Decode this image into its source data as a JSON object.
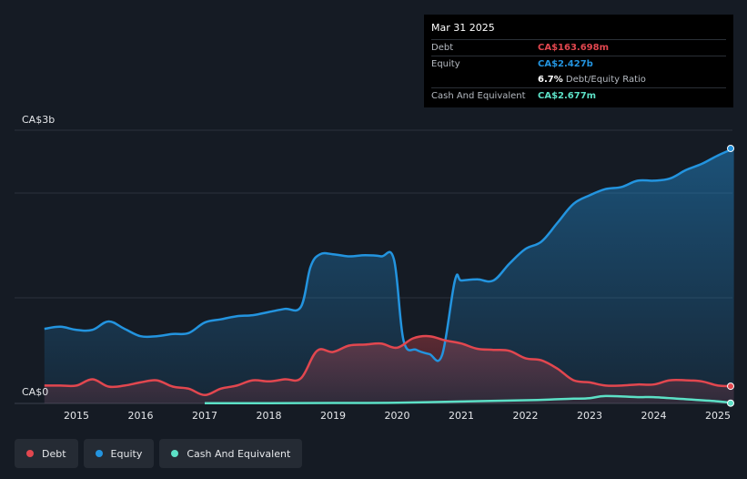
{
  "tooltip": {
    "date": "Mar 31 2025",
    "debt_label": "Debt",
    "debt_value": "CA$163.698m",
    "equity_label": "Equity",
    "equity_value": "CA$2.427b",
    "ratio_value": "6.7%",
    "ratio_label": "Debt/Equity Ratio",
    "cash_label": "Cash And Equivalent",
    "cash_value": "CA$2.677m"
  },
  "legend": {
    "debt": "Debt",
    "equity": "Equity",
    "cash": "Cash And Equivalent"
  },
  "colors": {
    "debt": "#e2474f",
    "equity": "#2394df",
    "cash": "#5ce0c6"
  },
  "chart_data": {
    "type": "area",
    "ylim": [
      0,
      2.6
    ],
    "y_unit": "CA$ billions",
    "y_ticks": [
      "CA$3b",
      "CA$0"
    ],
    "x_ticks": [
      "2015",
      "2016",
      "2017",
      "2018",
      "2019",
      "2020",
      "2021",
      "2022",
      "2023",
      "2024",
      "2025"
    ],
    "series": [
      {
        "name": "Equity",
        "points": [
          [
            2014.5,
            0.71
          ],
          [
            2014.75,
            0.73
          ],
          [
            2015.0,
            0.7
          ],
          [
            2015.25,
            0.7
          ],
          [
            2015.5,
            0.78
          ],
          [
            2015.75,
            0.71
          ],
          [
            2016.0,
            0.64
          ],
          [
            2016.25,
            0.64
          ],
          [
            2016.5,
            0.66
          ],
          [
            2016.75,
            0.67
          ],
          [
            2017.0,
            0.77
          ],
          [
            2017.25,
            0.8
          ],
          [
            2017.5,
            0.83
          ],
          [
            2017.75,
            0.84
          ],
          [
            2018.0,
            0.87
          ],
          [
            2018.25,
            0.9
          ],
          [
            2018.5,
            0.92
          ],
          [
            2018.65,
            1.3
          ],
          [
            2018.8,
            1.42
          ],
          [
            2019.0,
            1.42
          ],
          [
            2019.25,
            1.4
          ],
          [
            2019.5,
            1.41
          ],
          [
            2019.75,
            1.4
          ],
          [
            2019.95,
            1.37
          ],
          [
            2020.1,
            0.6
          ],
          [
            2020.3,
            0.51
          ],
          [
            2020.5,
            0.47
          ],
          [
            2020.7,
            0.46
          ],
          [
            2020.9,
            1.17
          ],
          [
            2021.0,
            1.17
          ],
          [
            2021.25,
            1.18
          ],
          [
            2021.5,
            1.17
          ],
          [
            2021.75,
            1.33
          ],
          [
            2022.0,
            1.47
          ],
          [
            2022.25,
            1.54
          ],
          [
            2022.5,
            1.72
          ],
          [
            2022.75,
            1.9
          ],
          [
            2023.0,
            1.98
          ],
          [
            2023.25,
            2.04
          ],
          [
            2023.5,
            2.06
          ],
          [
            2023.75,
            2.12
          ],
          [
            2024.0,
            2.12
          ],
          [
            2024.25,
            2.14
          ],
          [
            2024.5,
            2.22
          ],
          [
            2024.75,
            2.28
          ],
          [
            2025.0,
            2.36
          ],
          [
            2025.25,
            2.427
          ]
        ]
      },
      {
        "name": "Debt",
        "points": [
          [
            2014.5,
            0.17
          ],
          [
            2014.75,
            0.17
          ],
          [
            2015.0,
            0.17
          ],
          [
            2015.25,
            0.23
          ],
          [
            2015.5,
            0.16
          ],
          [
            2015.75,
            0.17
          ],
          [
            2016.0,
            0.2
          ],
          [
            2016.25,
            0.22
          ],
          [
            2016.5,
            0.16
          ],
          [
            2016.75,
            0.14
          ],
          [
            2017.0,
            0.08
          ],
          [
            2017.25,
            0.14
          ],
          [
            2017.5,
            0.17
          ],
          [
            2017.75,
            0.22
          ],
          [
            2018.0,
            0.21
          ],
          [
            2018.25,
            0.23
          ],
          [
            2018.5,
            0.24
          ],
          [
            2018.75,
            0.5
          ],
          [
            2019.0,
            0.49
          ],
          [
            2019.25,
            0.55
          ],
          [
            2019.5,
            0.56
          ],
          [
            2019.75,
            0.57
          ],
          [
            2020.0,
            0.53
          ],
          [
            2020.25,
            0.62
          ],
          [
            2020.5,
            0.64
          ],
          [
            2020.75,
            0.6
          ],
          [
            2021.0,
            0.57
          ],
          [
            2021.25,
            0.52
          ],
          [
            2021.5,
            0.51
          ],
          [
            2021.75,
            0.5
          ],
          [
            2022.0,
            0.43
          ],
          [
            2022.25,
            0.41
          ],
          [
            2022.5,
            0.33
          ],
          [
            2022.75,
            0.22
          ],
          [
            2023.0,
            0.2
          ],
          [
            2023.25,
            0.17
          ],
          [
            2023.5,
            0.17
          ],
          [
            2023.75,
            0.18
          ],
          [
            2024.0,
            0.18
          ],
          [
            2024.25,
            0.22
          ],
          [
            2024.5,
            0.22
          ],
          [
            2024.75,
            0.21
          ],
          [
            2025.0,
            0.17
          ],
          [
            2025.25,
            0.164
          ]
        ]
      },
      {
        "name": "Cash And Equivalent",
        "points": [
          [
            2017.0,
            0.002
          ],
          [
            2018.0,
            0.003
          ],
          [
            2019.0,
            0.004
          ],
          [
            2020.0,
            0.006
          ],
          [
            2021.0,
            0.018
          ],
          [
            2022.0,
            0.03
          ],
          [
            2022.5,
            0.04
          ],
          [
            2022.75,
            0.045
          ],
          [
            2023.0,
            0.05
          ],
          [
            2023.25,
            0.07
          ],
          [
            2023.75,
            0.06
          ],
          [
            2024.0,
            0.06
          ],
          [
            2024.5,
            0.04
          ],
          [
            2025.0,
            0.02
          ],
          [
            2025.25,
            0.0027
          ]
        ]
      }
    ]
  }
}
